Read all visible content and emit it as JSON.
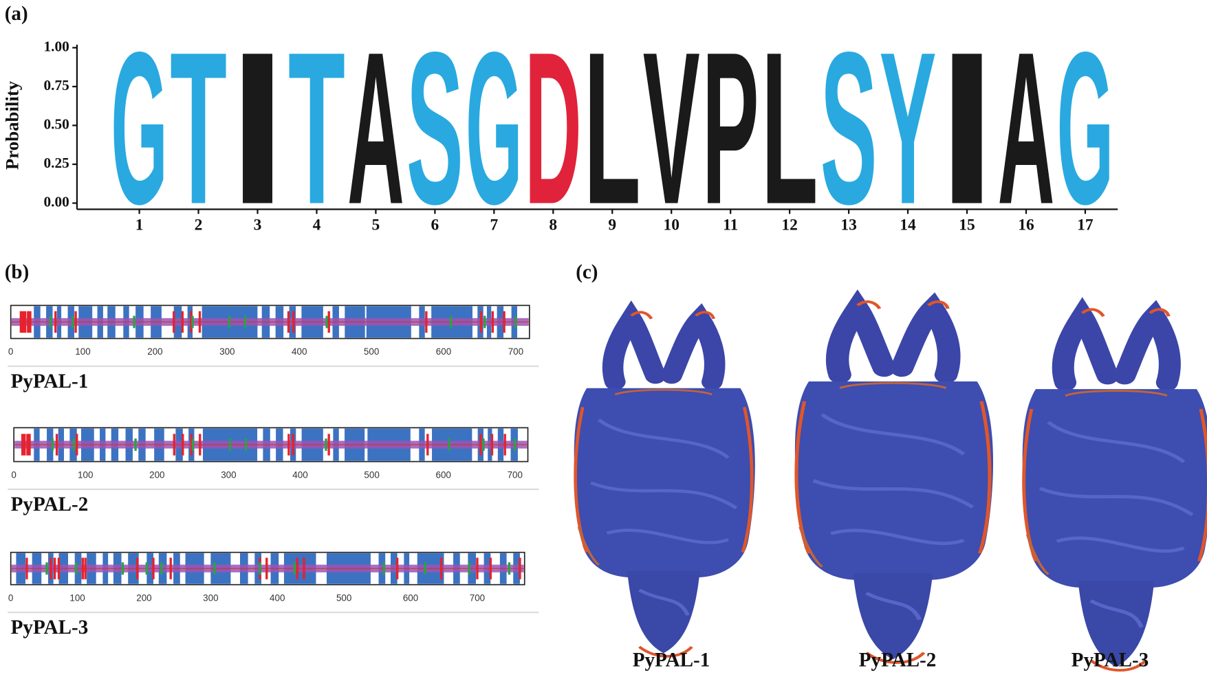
{
  "panel_labels": [
    "(a)",
    "(b)",
    "(c)"
  ],
  "chart_data": [
    {
      "type": "logo",
      "ylabel": "Probability",
      "categories": [
        1,
        2,
        3,
        4,
        5,
        6,
        7,
        8,
        9,
        10,
        11,
        12,
        13,
        14,
        15,
        16,
        17
      ],
      "letters": [
        "G",
        "T",
        "I",
        "T",
        "A",
        "S",
        "G",
        "D",
        "L",
        "V",
        "P",
        "L",
        "S",
        "Y",
        "I",
        "A",
        "G"
      ],
      "values": [
        1,
        1,
        1,
        1,
        1,
        1,
        1,
        1,
        1,
        1,
        1,
        1,
        1,
        1,
        1,
        1,
        1
      ],
      "colors": [
        "#29a9e0",
        "#29a9e0",
        "#1a1a1a",
        "#29a9e0",
        "#1a1a1a",
        "#29a9e0",
        "#29a9e0",
        "#e0233a",
        "#1a1a1a",
        "#1a1a1a",
        "#1a1a1a",
        "#1a1a1a",
        "#29a9e0",
        "#29a9e0",
        "#1a1a1a",
        "#1a1a1a",
        "#29a9e0"
      ],
      "ylim": [
        0,
        1
      ],
      "yticks": [
        {
          "value": 0,
          "label": "0.00"
        },
        {
          "value": 0.25,
          "label": "0.25"
        },
        {
          "value": 0.5,
          "label": "0.50"
        },
        {
          "value": 0.75,
          "label": "0.75"
        },
        {
          "value": 1,
          "label": "1.00"
        }
      ]
    },
    {
      "type": "domain-map",
      "title": "PyPAL-1",
      "xlim": [
        0,
        719
      ],
      "xticks": [
        0,
        100,
        200,
        300,
        400,
        500,
        600,
        700
      ],
      "block_color": "#3c72c2",
      "band_color": "#9a55b4",
      "red_color": "#e5222d",
      "green_color": "#2aa14a",
      "blocks": [
        [
          32,
          41
        ],
        [
          49,
          58
        ],
        [
          64,
          70
        ],
        [
          79,
          88
        ],
        [
          94,
          113
        ],
        [
          120,
          128
        ],
        [
          134,
          145
        ],
        [
          156,
          164
        ],
        [
          173,
          184
        ],
        [
          194,
          209
        ],
        [
          226,
          237
        ],
        [
          245,
          252
        ],
        [
          265,
          342
        ],
        [
          348,
          359
        ],
        [
          367,
          378
        ],
        [
          386,
          395
        ],
        [
          403,
          433
        ],
        [
          446,
          455
        ],
        [
          463,
          491
        ],
        [
          493,
          555
        ],
        [
          566,
          574
        ],
        [
          583,
          640
        ],
        [
          647,
          655
        ],
        [
          660,
          666
        ],
        [
          674,
          683
        ],
        [
          694,
          702
        ]
      ],
      "red": [
        14,
        17,
        20,
        24,
        27,
        62,
        90,
        226,
        238,
        250,
        262,
        385,
        392,
        441,
        576,
        652,
        668,
        684
      ],
      "green": [
        55,
        86,
        171,
        252,
        303,
        325,
        438,
        610,
        657,
        700
      ]
    },
    {
      "type": "domain-map",
      "title": "PyPAL-2",
      "xlim": [
        0,
        718
      ],
      "xticks": [
        0,
        100,
        200,
        300,
        400,
        500,
        600,
        700
      ],
      "block_color": "#3c72c2",
      "band_color": "#9a55b4",
      "red_color": "#e5222d",
      "green_color": "#2aa14a",
      "blocks": [
        [
          28,
          36
        ],
        [
          46,
          55
        ],
        [
          62,
          70
        ],
        [
          78,
          88
        ],
        [
          94,
          112
        ],
        [
          120,
          128
        ],
        [
          136,
          146
        ],
        [
          156,
          166
        ],
        [
          174,
          184
        ],
        [
          196,
          210
        ],
        [
          226,
          236
        ],
        [
          244,
          252
        ],
        [
          264,
          340
        ],
        [
          348,
          358
        ],
        [
          366,
          376
        ],
        [
          386,
          394
        ],
        [
          402,
          432
        ],
        [
          446,
          454
        ],
        [
          462,
          490
        ],
        [
          494,
          554
        ],
        [
          566,
          574
        ],
        [
          584,
          640
        ],
        [
          648,
          656
        ],
        [
          662,
          668
        ],
        [
          676,
          684
        ],
        [
          694,
          704
        ]
      ],
      "red": [
        12,
        15,
        19,
        22,
        60,
        88,
        224,
        236,
        248,
        260,
        384,
        390,
        440,
        578,
        652,
        668,
        686
      ],
      "green": [
        54,
        84,
        170,
        250,
        302,
        324,
        436,
        608,
        656,
        700
      ]
    },
    {
      "type": "domain-map",
      "title": "PyPAL-3",
      "xlim": [
        0,
        771
      ],
      "xticks": [
        0,
        100,
        200,
        300,
        400,
        500,
        600,
        700
      ],
      "block_color": "#3c72c2",
      "band_color": "#9a55b4",
      "red_color": "#e5222d",
      "green_color": "#2aa14a",
      "blocks": [
        [
          8,
          22
        ],
        [
          32,
          46
        ],
        [
          56,
          64
        ],
        [
          72,
          86
        ],
        [
          96,
          106
        ],
        [
          114,
          128
        ],
        [
          138,
          146
        ],
        [
          154,
          166
        ],
        [
          176,
          192
        ],
        [
          204,
          214
        ],
        [
          222,
          234
        ],
        [
          244,
          254
        ],
        [
          262,
          290
        ],
        [
          300,
          330
        ],
        [
          344,
          356
        ],
        [
          366,
          376
        ],
        [
          390,
          402
        ],
        [
          410,
          458
        ],
        [
          474,
          540
        ],
        [
          552,
          562
        ],
        [
          570,
          580
        ],
        [
          590,
          598
        ],
        [
          610,
          650
        ],
        [
          664,
          674
        ],
        [
          686,
          698
        ],
        [
          710,
          720
        ],
        [
          734,
          744
        ],
        [
          754,
          764
        ]
      ],
      "red": [
        24,
        60,
        66,
        72,
        108,
        112,
        190,
        214,
        240,
        374,
        384,
        430,
        440,
        580,
        646,
        700,
        720,
        764
      ],
      "green": [
        54,
        98,
        168,
        204,
        226,
        306,
        374,
        426,
        560,
        622,
        688,
        748
      ]
    }
  ],
  "structures": {
    "labels": [
      "PyPAL-1",
      "PyPAL-2",
      "PyPAL-3"
    ]
  }
}
